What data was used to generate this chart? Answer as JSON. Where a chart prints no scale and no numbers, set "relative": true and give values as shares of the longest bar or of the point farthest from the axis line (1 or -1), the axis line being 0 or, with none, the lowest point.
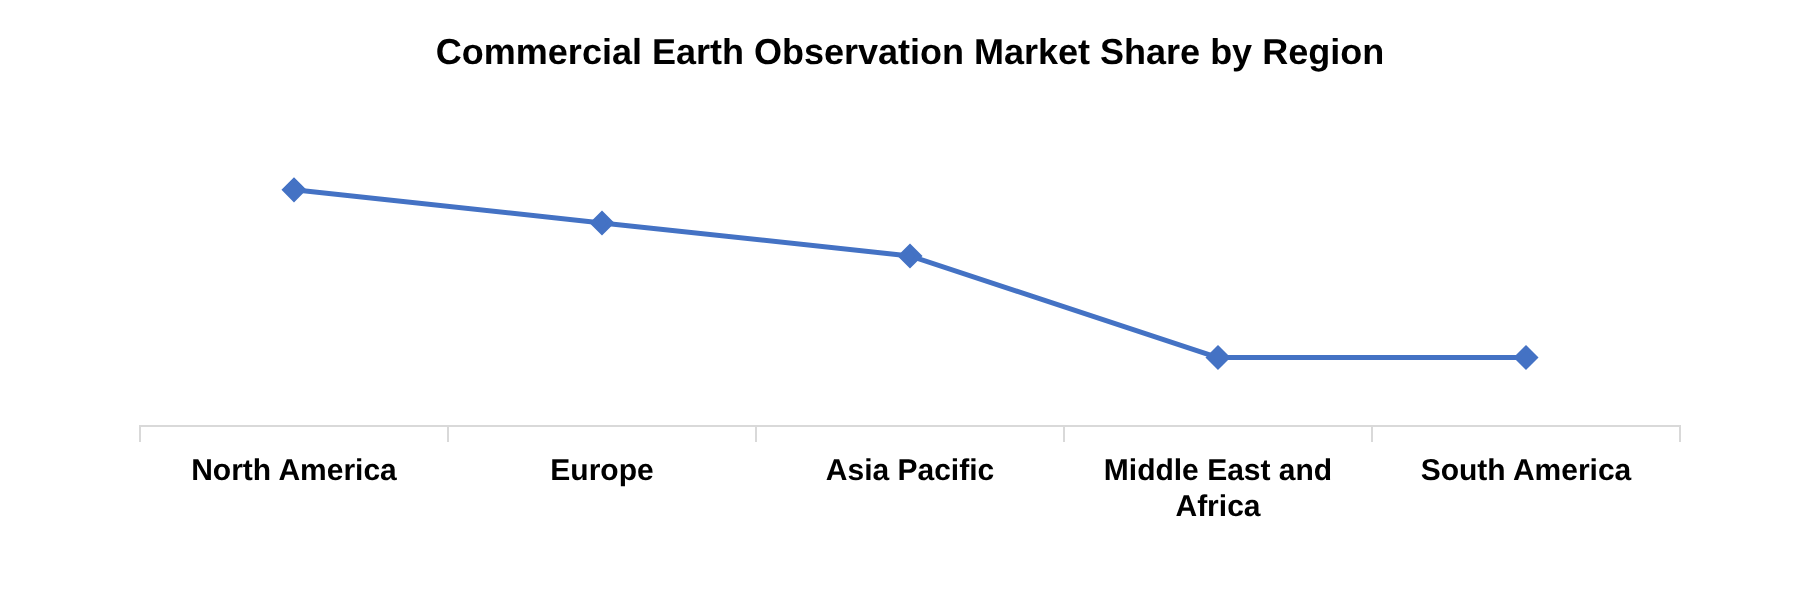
{
  "chart_data": {
    "type": "line",
    "title": "Commercial Earth Observation Market Share by Region",
    "categories": [
      "North America",
      "Europe",
      "Asia Pacific",
      "Middle East and Africa",
      "South America"
    ],
    "relative": true,
    "series": [
      {
        "color": "#4472c4",
        "values": [
          1,
          0.86,
          0.72,
          0.29,
          0.29
        ]
      }
    ],
    "marker": "diamond",
    "line_style": "solid",
    "grid": false,
    "legend": false
  }
}
